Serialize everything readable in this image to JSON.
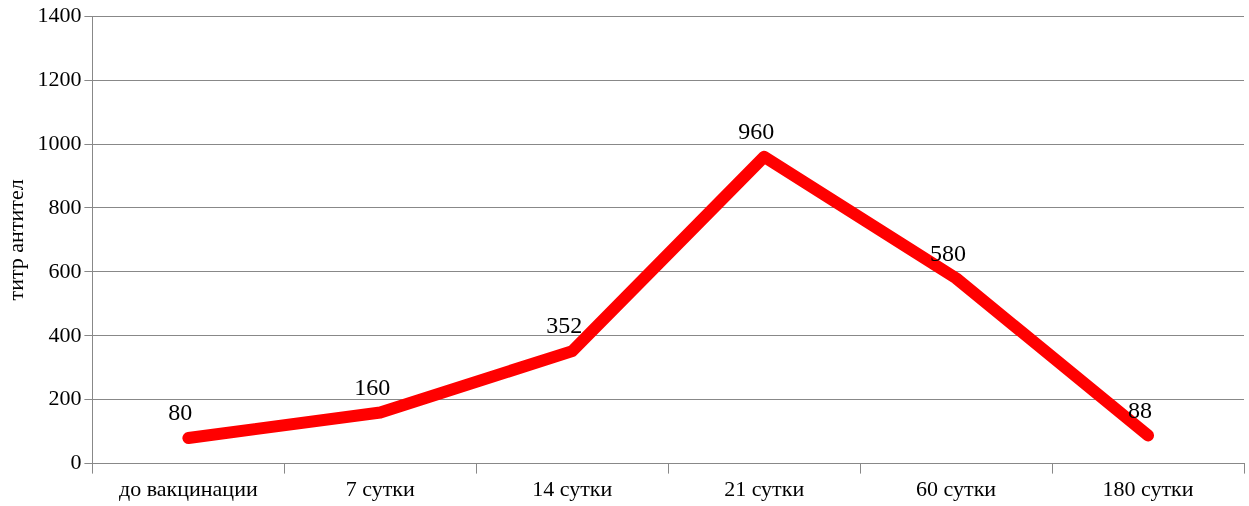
{
  "chart_data": {
    "type": "line",
    "ylabel": "титр антител",
    "categories": [
      "до вакцинации",
      "7 сутки",
      "14 сутки",
      "21 сутки",
      "60 сутки",
      "180 сутки"
    ],
    "series": [
      {
        "color": "#ff0000",
        "values": [
          80,
          160,
          352,
          960,
          580,
          88
        ]
      }
    ],
    "ylim": [
      0,
      1400
    ],
    "yticks": [
      0,
      200,
      400,
      600,
      800,
      1000,
      1200,
      1400
    ],
    "grid": "y",
    "legend": false,
    "marker": "none",
    "line_style": "solid",
    "data_labels": true
  }
}
